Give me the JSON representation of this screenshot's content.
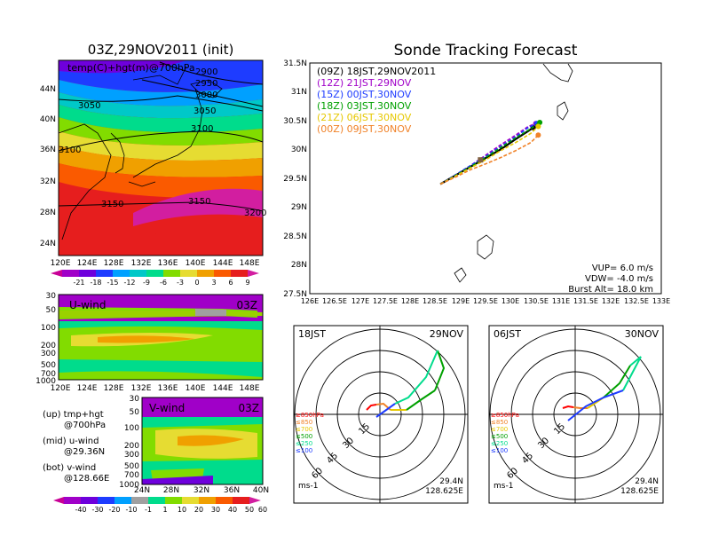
{
  "map_panel": {
    "title": "03Z,29NOV2011 (init)",
    "overlay_label": "temp(C)+hgt(m)@700hPa",
    "lat_labels": [
      "44N",
      "40N",
      "36N",
      "32N",
      "28N",
      "24N"
    ],
    "lon_labels": [
      "120E",
      "124E",
      "128E",
      "132E",
      "136E",
      "140E",
      "144E",
      "148E"
    ],
    "contour_labels": [
      "2900",
      "2950",
      "3000",
      "3050",
      "3050",
      "3100",
      "3100",
      "3150",
      "3150",
      "3200"
    ],
    "colorbar_labels": [
      "-21",
      "-18",
      "-15",
      "-12",
      "-9",
      "-6",
      "-3",
      "0",
      "3",
      "6",
      "9"
    ]
  },
  "tracking": {
    "title": "Sonde Tracking Forecast",
    "lat_labels": [
      "31.5N",
      "31N",
      "30.5N",
      "30N",
      "29.5N",
      "29N",
      "28.5N",
      "28N",
      "27.5N"
    ],
    "lon_labels": [
      "126E",
      "126.5E",
      "127E",
      "127.5E",
      "128E",
      "128.5E",
      "129E",
      "129.5E",
      "130E",
      "130.5E",
      "131E",
      "131.5E",
      "132E",
      "132.5E",
      "133E"
    ],
    "legend": [
      {
        "text": "(09Z)  18JST,29NOV2011",
        "color": "#000000"
      },
      {
        "text": "(12Z)  21JST,29NOV",
        "color": "#a000c8"
      },
      {
        "text": "(15Z)  00JST,30NOV",
        "color": "#1e3cff"
      },
      {
        "text": "(18Z)  03JST,30NOV",
        "color": "#00a000"
      },
      {
        "text": "(21Z)  06JST,30NOV",
        "color": "#e6c800"
      },
      {
        "text": "(00Z)  09JST,30NOV",
        "color": "#f08228"
      }
    ],
    "params": [
      "VUP=  6.0 m/s",
      "VDW= -4.0 m/s",
      "Burst Alt= 18.0 km"
    ]
  },
  "uwind": {
    "label": "U-wind",
    "time": "03Z",
    "p_labels": [
      "30",
      "50",
      "100",
      "200",
      "300",
      "500",
      "700",
      "1000"
    ],
    "lon_labels": [
      "120E",
      "124E",
      "128E",
      "132E",
      "136E",
      "140E",
      "144E",
      "148E"
    ]
  },
  "vwind": {
    "label": "V-wind",
    "time": "03Z",
    "p_labels": [
      "30",
      "50",
      "100",
      "200",
      "300",
      "500",
      "700",
      "1000"
    ],
    "lat_labels": [
      "24N",
      "28N",
      "32N",
      "36N",
      "40N"
    ],
    "colorbar_labels": [
      "-40",
      "-30",
      "-20",
      "-10",
      "-1",
      "1",
      "10",
      "20",
      "30",
      "40",
      "50",
      "60"
    ]
  },
  "notes": {
    "up": "(up) tmp+hgt",
    "up2": "@700hPa",
    "mid": "(mid) u-wind",
    "mid2": "@29.36N",
    "bot": "(bot) v-wind",
    "bot2": "@128.66E"
  },
  "hodo1": {
    "time": "18JST",
    "date": "29NOV",
    "pressure_legend": [
      "≥850hPa",
      "≤850",
      "≤700",
      "≤500",
      "≤250",
      "≤100"
    ],
    "ring_labels": [
      "15",
      "30",
      "45",
      "60"
    ],
    "unit": "ms-1",
    "lat": "29.4N",
    "lon": "128.625E"
  },
  "hodo2": {
    "time": "06JST",
    "date": "30NOV",
    "pressure_legend": [
      "≥850hPa",
      "≤850",
      "≤700",
      "≤500",
      "≤250",
      "≤100"
    ],
    "ring_labels": [
      "15",
      "30",
      "45",
      "60"
    ],
    "unit": "ms-1",
    "lat": "29.4N",
    "lon": "128.625E"
  },
  "chart_data": [
    {
      "type": "heatmap",
      "title": "03Z,29NOV2011 (init)",
      "variable": "temp(C)+hgt(m)@700hPa",
      "x_range": [
        "120E",
        "150E"
      ],
      "y_range": [
        "22N",
        "47N"
      ],
      "color_levels": [
        -21,
        -18,
        -15,
        -12,
        -9,
        -6,
        -3,
        0,
        3,
        6,
        9
      ],
      "contour_values": [
        2900,
        2950,
        3000,
        3050,
        3100,
        3150,
        3200
      ]
    },
    {
      "type": "line",
      "title": "Sonde Tracking Forecast",
      "xlim": [
        126,
        133
      ],
      "ylim": [
        27.5,
        31.5
      ],
      "series": [
        {
          "name": "(09Z)  18JST,29NOV2011",
          "x": [
            128.6,
            128.9,
            129.2,
            129.5,
            129.8,
            130.1,
            130.35,
            130.45
          ],
          "y": [
            29.4,
            29.55,
            29.7,
            29.85,
            30.0,
            30.18,
            30.32,
            30.38
          ]
        },
        {
          "name": "(12Z)  21JST,29NOV",
          "x": [
            128.6,
            128.9,
            129.2,
            129.5,
            129.8,
            130.1,
            130.35,
            130.5
          ],
          "y": [
            29.4,
            29.56,
            29.72,
            29.9,
            30.08,
            30.25,
            30.4,
            30.45
          ]
        },
        {
          "name": "(15Z)  00JST,30NOV",
          "x": [
            128.6,
            128.9,
            129.2,
            129.5,
            129.8,
            130.1,
            130.35,
            130.52
          ],
          "y": [
            29.4,
            29.56,
            29.72,
            29.88,
            30.05,
            30.22,
            30.38,
            30.45
          ]
        },
        {
          "name": "(18Z)  03JST,30NOV",
          "x": [
            128.6,
            128.9,
            129.2,
            129.5,
            129.8,
            130.1,
            130.4,
            130.58
          ],
          "y": [
            29.4,
            29.55,
            29.7,
            29.86,
            30.03,
            30.2,
            30.36,
            30.47
          ]
        },
        {
          "name": "(21Z)  06JST,30NOV",
          "x": [
            128.6,
            128.9,
            129.2,
            129.5,
            129.8,
            130.1,
            130.4,
            130.55
          ],
          "y": [
            29.4,
            29.54,
            29.68,
            29.82,
            29.98,
            30.12,
            30.28,
            30.4
          ]
        },
        {
          "name": "(00Z)  09JST,30NOV",
          "x": [
            128.6,
            128.9,
            129.2,
            129.5,
            129.8,
            130.1,
            130.4,
            130.55
          ],
          "y": [
            29.4,
            29.52,
            29.65,
            29.75,
            29.86,
            29.98,
            30.12,
            30.25
          ]
        }
      ],
      "annotations": [
        "VUP=  6.0 m/s",
        "VDW= -4.0 m/s",
        "Burst Alt= 18.0 km"
      ]
    }
  ]
}
